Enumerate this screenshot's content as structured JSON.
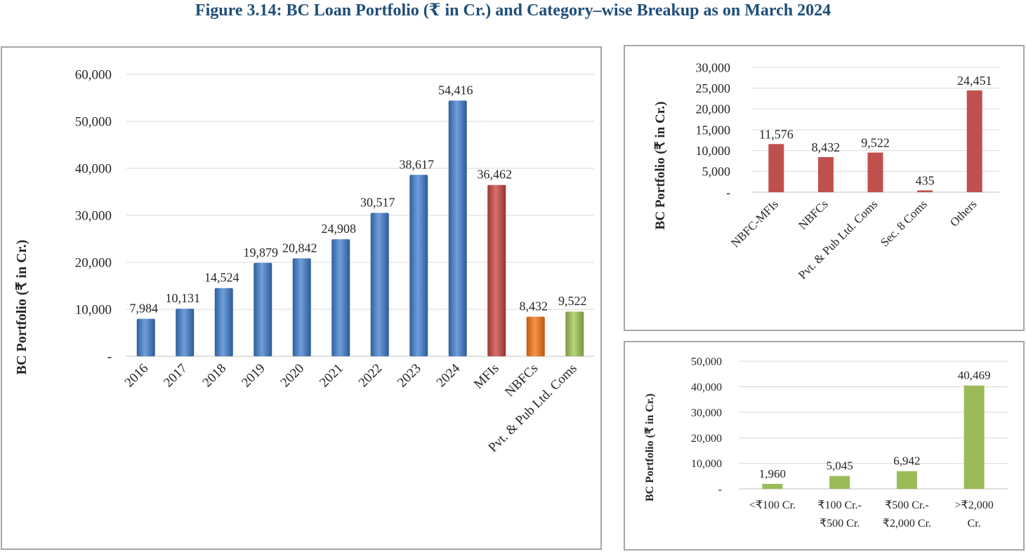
{
  "figure": {
    "title": "Figure 3.14: BC Loan Portfolio (₹ in Cr.) and Category–wise Breakup as on March 2024"
  },
  "chart_data": [
    {
      "type": "bar",
      "categories": [
        "2016",
        "2017",
        "2018",
        "2019",
        "2020",
        "2021",
        "2022",
        "2023",
        "2024",
        "MFIs",
        "NBFCs",
        "Pvt. & Pub Ltd. Coms"
      ],
      "values": [
        7984,
        10131,
        14524,
        19879,
        20842,
        24908,
        30517,
        38617,
        54416,
        36462,
        8432,
        9522
      ],
      "data_labels": [
        "7,984",
        "10,131",
        "14,524",
        "19,879",
        "20,842",
        "24,908",
        "30,517",
        "38,617",
        "54,416",
        "36,462",
        "8,432",
        "9,522"
      ],
      "colors": [
        "#4a7ec0",
        "#4a7ec0",
        "#4a7ec0",
        "#4a7ec0",
        "#4a7ec0",
        "#4a7ec0",
        "#4a7ec0",
        "#4a7ec0",
        "#4a7ec0",
        "#c0504d",
        "#e8701a",
        "#9bbb59"
      ],
      "ylabel": "BC Portfolio (₹ in Cr.)",
      "ylim": [
        0,
        60000
      ],
      "yticks": [
        0,
        10000,
        20000,
        30000,
        40000,
        50000,
        60000
      ],
      "ytick_labels": [
        "-",
        "10,000",
        "20,000",
        "30,000",
        "40,000",
        "50,000",
        "60,000"
      ],
      "grid": true,
      "style": "3d-shaded"
    },
    {
      "type": "bar",
      "categories": [
        "NBFC-MFIs",
        "NBFCs",
        "Pvt. & Pub Ltd. Coms",
        "Sec. 8 Coms",
        "Others"
      ],
      "values": [
        11576,
        8432,
        9522,
        435,
        24451
      ],
      "data_labels": [
        "11,576",
        "8,432",
        "9,522",
        "435",
        "24,451"
      ],
      "color": "#c0504d",
      "ylabel": "BC Portfolio (₹ in Cr.)",
      "ylim": [
        0,
        30000
      ],
      "yticks": [
        0,
        5000,
        10000,
        15000,
        20000,
        25000,
        30000
      ],
      "ytick_labels": [
        "-",
        "5,000",
        "10,000",
        "15,000",
        "20,000",
        "25,000",
        "30,000"
      ],
      "grid": true
    },
    {
      "type": "bar",
      "categories": [
        [
          "<₹100 Cr.",
          ""
        ],
        [
          "₹100 Cr.-",
          "₹500 Cr."
        ],
        [
          "₹500 Cr.-",
          "₹2,000 Cr."
        ],
        [
          ">₹2,000",
          "Cr."
        ]
      ],
      "values": [
        1960,
        5045,
        6942,
        40469
      ],
      "data_labels": [
        "1,960",
        "5,045",
        "6,942",
        "40,469"
      ],
      "color": "#9bbb59",
      "ylabel": "BC Portfolio (₹ in Cr.)",
      "ylim": [
        0,
        50000
      ],
      "yticks": [
        0,
        10000,
        20000,
        30000,
        40000,
        50000
      ],
      "ytick_labels": [
        "-",
        "10,000",
        "20,000",
        "30,000",
        "40,000",
        "50,000"
      ],
      "grid": true
    }
  ]
}
